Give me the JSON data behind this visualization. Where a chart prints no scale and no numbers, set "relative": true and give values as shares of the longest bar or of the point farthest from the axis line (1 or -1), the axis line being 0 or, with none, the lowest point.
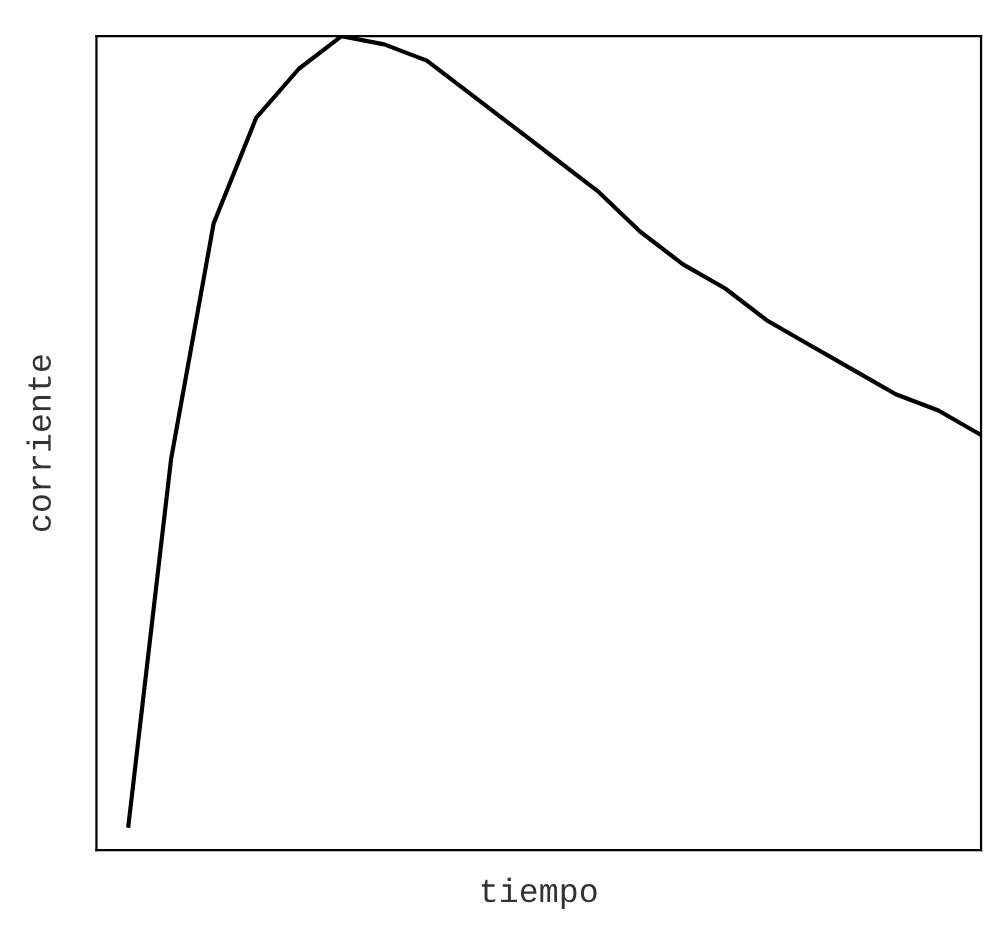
{
  "chart_data": {
    "type": "line",
    "xlabel": "tiempo",
    "ylabel": "corriente",
    "relative": true,
    "tick_labels": false,
    "categories": [
      null,
      null,
      null,
      null,
      null,
      null,
      null,
      null,
      null,
      null,
      null,
      null,
      null,
      null,
      null,
      null,
      null,
      null,
      null,
      null,
      null
    ],
    "series": [
      {
        "color": "#000000",
        "values": [
          0.03,
          0.48,
          0.77,
          0.9,
          0.96,
          1.0,
          0.99,
          0.97,
          0.93,
          0.89,
          0.85,
          0.81,
          0.76,
          0.72,
          0.69,
          0.65,
          0.62,
          0.59,
          0.56,
          0.54,
          0.51
        ]
      }
    ]
  }
}
